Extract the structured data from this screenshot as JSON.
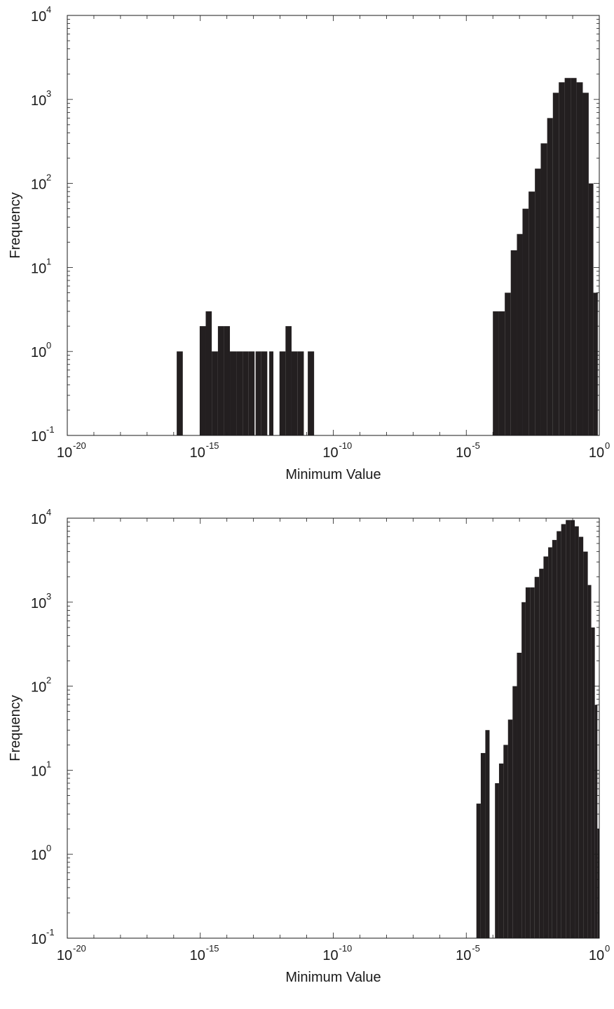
{
  "chart_data": [
    {
      "type": "bar",
      "xlabel": "Minimum Value",
      "ylabel": "Frequency",
      "xscale": "log",
      "yscale": "log",
      "xlim": [
        1e-20,
        1
      ],
      "ylim": [
        0.1,
        10000
      ],
      "grid": false,
      "bar_color": "#231f20",
      "x_tick_labels": [
        {
          "base": "10",
          "exp": "-20",
          "value": 1e-20
        },
        {
          "base": "10",
          "exp": "-15",
          "value": 1e-15
        },
        {
          "base": "10",
          "exp": "-10",
          "value": 1e-10
        },
        {
          "base": "10",
          "exp": "-5",
          "value": 1e-05
        },
        {
          "base": "10",
          "exp": "0",
          "value": 1
        }
      ],
      "y_tick_labels": [
        {
          "base": "10",
          "exp": "-1",
          "value": 0.1
        },
        {
          "base": "10",
          "exp": "0",
          "value": 1
        },
        {
          "base": "10",
          "exp": "1",
          "value": 10
        },
        {
          "base": "10",
          "exp": "2",
          "value": 100
        },
        {
          "base": "10",
          "exp": "3",
          "value": 1000
        },
        {
          "base": "10",
          "exp": "4",
          "value": 10000
        }
      ],
      "bars": [
        {
          "x0": 1.3e-16,
          "x1": 2.2e-16,
          "value": 1
        },
        {
          "x0": 9.5e-16,
          "x1": 1.6e-15,
          "value": 2
        },
        {
          "x0": 1.6e-15,
          "x1": 2.7e-15,
          "value": 3
        },
        {
          "x0": 2.7e-15,
          "x1": 4.6e-15,
          "value": 1
        },
        {
          "x0": 4.6e-15,
          "x1": 7.8e-15,
          "value": 2
        },
        {
          "x0": 7.8e-15,
          "x1": 1.3e-14,
          "value": 2
        },
        {
          "x0": 1.3e-14,
          "x1": 2.3e-14,
          "value": 1
        },
        {
          "x0": 2.3e-14,
          "x1": 3.9e-14,
          "value": 1
        },
        {
          "x0": 3.9e-14,
          "x1": 6.6e-14,
          "value": 1
        },
        {
          "x0": 6.6e-14,
          "x1": 1.1e-13,
          "value": 1
        },
        {
          "x0": 1.2e-13,
          "x1": 1.9e-13,
          "value": 1
        },
        {
          "x0": 1.9e-13,
          "x1": 3.3e-13,
          "value": 1
        },
        {
          "x0": 3.9e-13,
          "x1": 5.6e-13,
          "value": 1
        },
        {
          "x0": 9.5e-13,
          "x1": 1.6e-12,
          "value": 1
        },
        {
          "x0": 1.6e-12,
          "x1": 2.7e-12,
          "value": 2
        },
        {
          "x0": 2.7e-12,
          "x1": 4.6e-12,
          "value": 1
        },
        {
          "x0": 4.6e-12,
          "x1": 7.8e-12,
          "value": 1
        },
        {
          "x0": 1.1e-11,
          "x1": 1.9e-11,
          "value": 1
        },
        {
          "x0": 0.0001,
          "x1": 0.00017,
          "value": 3
        },
        {
          "x0": 0.00017,
          "x1": 0.00028,
          "value": 3
        },
        {
          "x0": 0.00028,
          "x1": 0.00047,
          "value": 5
        },
        {
          "x0": 0.00047,
          "x1": 0.0008,
          "value": 16
        },
        {
          "x0": 0.0008,
          "x1": 0.0013,
          "value": 25
        },
        {
          "x0": 0.0013,
          "x1": 0.0022,
          "value": 50
        },
        {
          "x0": 0.0022,
          "x1": 0.0038,
          "value": 80
        },
        {
          "x0": 0.0038,
          "x1": 0.0063,
          "value": 150
        },
        {
          "x0": 0.0063,
          "x1": 0.011,
          "value": 300
        },
        {
          "x0": 0.011,
          "x1": 0.018,
          "value": 600
        },
        {
          "x0": 0.018,
          "x1": 0.03,
          "value": 1200
        },
        {
          "x0": 0.03,
          "x1": 0.05,
          "value": 1600
        },
        {
          "x0": 0.05,
          "x1": 0.085,
          "value": 1800
        },
        {
          "x0": 0.085,
          "x1": 0.14,
          "value": 1800
        },
        {
          "x0": 0.14,
          "x1": 0.24,
          "value": 1600
        },
        {
          "x0": 0.24,
          "x1": 0.4,
          "value": 1200
        },
        {
          "x0": 0.4,
          "x1": 0.6,
          "value": 100
        },
        {
          "x0": 0.6,
          "x1": 0.88,
          "value": 5
        }
      ]
    },
    {
      "type": "bar",
      "xlabel": "Minimum Value",
      "ylabel": "Frequency",
      "xscale": "log",
      "yscale": "log",
      "xlim": [
        1e-20,
        1
      ],
      "ylim": [
        0.1,
        10000
      ],
      "grid": false,
      "bar_color": "#231f20",
      "x_tick_labels": [
        {
          "base": "10",
          "exp": "-20",
          "value": 1e-20
        },
        {
          "base": "10",
          "exp": "-15",
          "value": 1e-15
        },
        {
          "base": "10",
          "exp": "-10",
          "value": 1e-10
        },
        {
          "base": "10",
          "exp": "-5",
          "value": 1e-05
        },
        {
          "base": "10",
          "exp": "0",
          "value": 1
        }
      ],
      "y_tick_labels": [
        {
          "base": "10",
          "exp": "-1",
          "value": 0.1
        },
        {
          "base": "10",
          "exp": "0",
          "value": 1
        },
        {
          "base": "10",
          "exp": "1",
          "value": 10
        },
        {
          "base": "10",
          "exp": "2",
          "value": 100
        },
        {
          "base": "10",
          "exp": "3",
          "value": 1000
        },
        {
          "base": "10",
          "exp": "4",
          "value": 10000
        }
      ],
      "bars": [
        {
          "x0": 2.4e-05,
          "x1": 3.5e-05,
          "value": 4
        },
        {
          "x0": 3.5e-05,
          "x1": 5.2e-05,
          "value": 16
        },
        {
          "x0": 5.2e-05,
          "x1": 7.5e-05,
          "value": 30
        },
        {
          "x0": 0.00012,
          "x1": 0.00017,
          "value": 7
        },
        {
          "x0": 0.00017,
          "x1": 0.00025,
          "value": 12
        },
        {
          "x0": 0.00025,
          "x1": 0.00037,
          "value": 20
        },
        {
          "x0": 0.00037,
          "x1": 0.00055,
          "value": 40
        },
        {
          "x0": 0.00055,
          "x1": 0.0008,
          "value": 100
        },
        {
          "x0": 0.0008,
          "x1": 0.0012,
          "value": 250
        },
        {
          "x0": 0.0012,
          "x1": 0.0017,
          "value": 1000
        },
        {
          "x0": 0.0017,
          "x1": 0.0025,
          "value": 1500
        },
        {
          "x0": 0.0025,
          "x1": 0.0037,
          "value": 1500
        },
        {
          "x0": 0.0037,
          "x1": 0.0055,
          "value": 2000
        },
        {
          "x0": 0.0055,
          "x1": 0.008,
          "value": 2500
        },
        {
          "x0": 0.008,
          "x1": 0.012,
          "value": 3500
        },
        {
          "x0": 0.012,
          "x1": 0.017,
          "value": 4500
        },
        {
          "x0": 0.017,
          "x1": 0.025,
          "value": 5500
        },
        {
          "x0": 0.025,
          "x1": 0.037,
          "value": 7000
        },
        {
          "x0": 0.037,
          "x1": 0.055,
          "value": 8500
        },
        {
          "x0": 0.055,
          "x1": 0.08,
          "value": 9500
        },
        {
          "x0": 0.08,
          "x1": 0.12,
          "value": 9500
        },
        {
          "x0": 0.12,
          "x1": 0.17,
          "value": 8000
        },
        {
          "x0": 0.17,
          "x1": 0.25,
          "value": 6000
        },
        {
          "x0": 0.25,
          "x1": 0.37,
          "value": 4000
        },
        {
          "x0": 0.37,
          "x1": 0.5,
          "value": 1600
        },
        {
          "x0": 0.5,
          "x1": 0.68,
          "value": 500
        },
        {
          "x0": 0.68,
          "x1": 0.85,
          "value": 60
        },
        {
          "x0": 0.85,
          "x1": 1.0,
          "value": 2
        }
      ]
    }
  ]
}
